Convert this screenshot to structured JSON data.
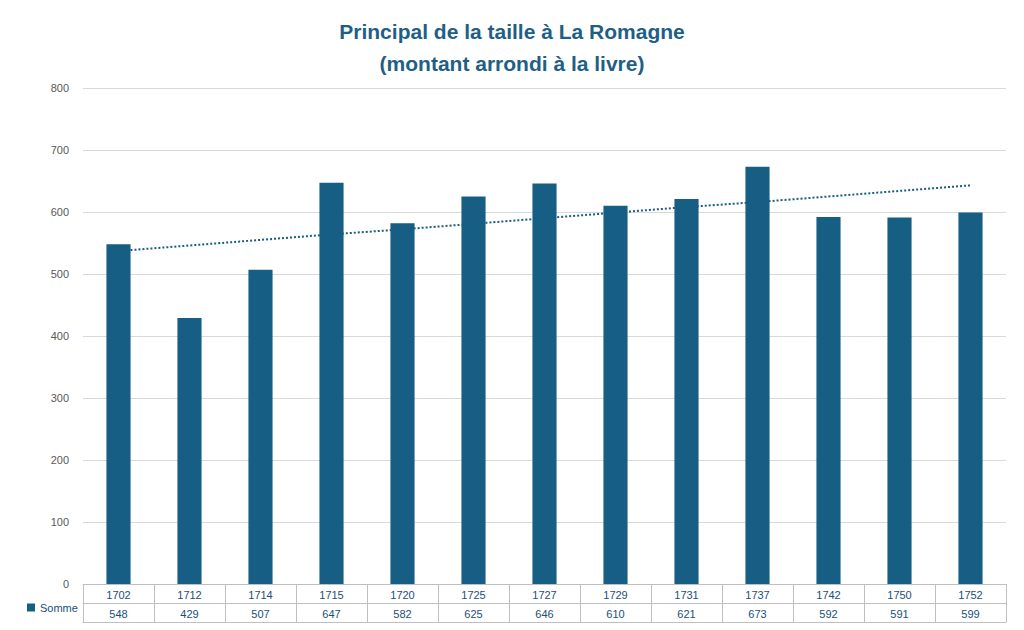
{
  "chart_data": {
    "type": "bar",
    "title": "Principal de la taille à La Romagne\n(montant arrondi à la livre)",
    "categories": [
      "1702",
      "1712",
      "1714",
      "1715",
      "1720",
      "1725",
      "1727",
      "1729",
      "1731",
      "1737",
      "1742",
      "1750",
      "1752"
    ],
    "series": [
      {
        "name": "Somme",
        "color": "#165e83",
        "values": [
          548,
          429,
          507,
          647,
          582,
          625,
          646,
          610,
          621,
          673,
          592,
          591,
          599
        ]
      },
      {
        "type": "line",
        "line_style": "dotted",
        "color": "#165e83",
        "values": [
          537,
          546,
          555,
          564,
          572,
          581,
          590,
          599,
          608,
          616,
          625,
          634,
          643
        ]
      }
    ],
    "ylim": [
      0,
      800
    ],
    "yticks": [
      0,
      100,
      200,
      300,
      400,
      500,
      600,
      700,
      800
    ],
    "grid": true,
    "legend": "bottom-left"
  }
}
